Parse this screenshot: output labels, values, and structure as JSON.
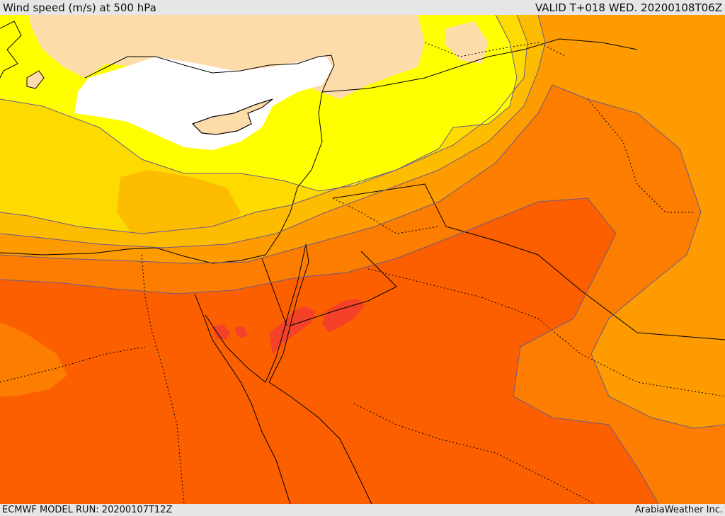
{
  "header": {
    "title": "Wind speed (m/s) at 500 hPa",
    "valid": "VALID T+018 WED. 20200108T06Z"
  },
  "footer": {
    "model_run": "ECMWF MODEL RUN: 20200107T12Z",
    "credit": "ArabiaWeather Inc."
  },
  "colors": {
    "band_lt20": "#ffffff",
    "band_20_25": "#fddcaa",
    "band_25_30": "#ffff00",
    "band_30_35": "#fdda00",
    "band_35_40": "#fdbc00",
    "band_40_45": "#fd9b00",
    "band_45_50": "#fc7d00",
    "band_50_55": "#fc5f00",
    "band_55_60": "#f4412a",
    "coastline": "#000000",
    "contour": "#6b5a8a"
  }
}
